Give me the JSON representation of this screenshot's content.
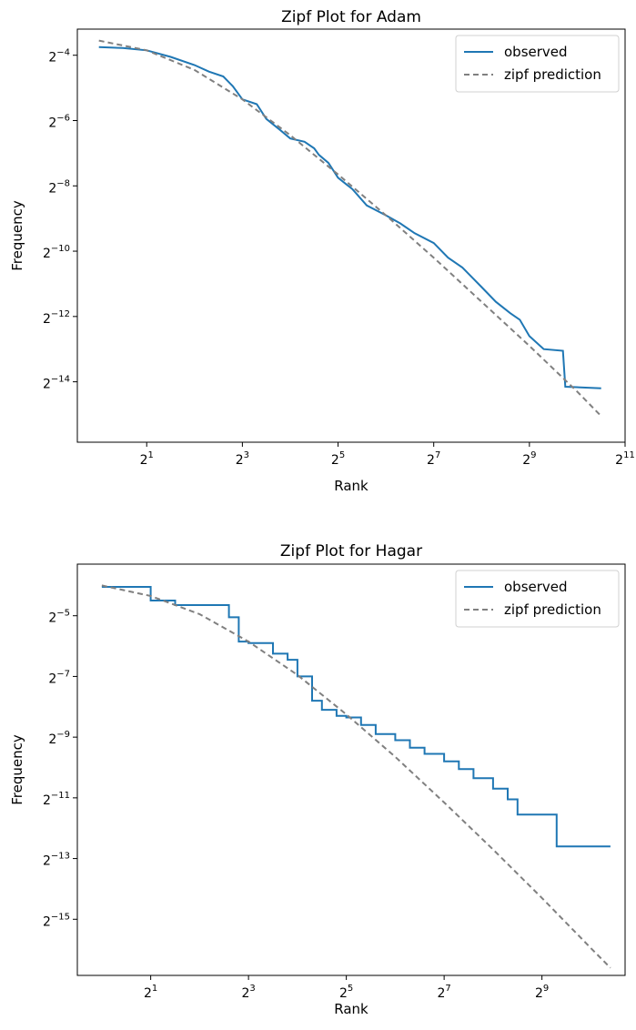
{
  "chart_data": [
    {
      "type": "line",
      "title": "Zipf Plot for Adam",
      "xlabel": "Rank",
      "ylabel": "Frequency",
      "xscale": "log2",
      "yscale": "log2",
      "xlim_log2": [
        -0.45,
        11.0
      ],
      "ylim_log2": [
        -15.85,
        -3.2
      ],
      "xticks": [
        {
          "exp": 1,
          "base": "2",
          "sup": "1"
        },
        {
          "exp": 3,
          "base": "2",
          "sup": "3"
        },
        {
          "exp": 5,
          "base": "2",
          "sup": "5"
        },
        {
          "exp": 7,
          "base": "2",
          "sup": "7"
        },
        {
          "exp": 9,
          "base": "2",
          "sup": "9"
        },
        {
          "exp": 11,
          "base": "2",
          "sup": "11"
        }
      ],
      "yticks": [
        {
          "exp": -4,
          "base": "2",
          "sup": "−4"
        },
        {
          "exp": -6,
          "base": "2",
          "sup": "−6"
        },
        {
          "exp": -8,
          "base": "2",
          "sup": "−8"
        },
        {
          "exp": -10,
          "base": "2",
          "sup": "−10"
        },
        {
          "exp": -12,
          "base": "2",
          "sup": "−12"
        },
        {
          "exp": -14,
          "base": "2",
          "sup": "−14"
        }
      ],
      "legend": {
        "position": "top-right",
        "entries": [
          "observed",
          "zipf prediction"
        ]
      },
      "grid": false,
      "series": [
        {
          "name": "observed",
          "style": "solid",
          "color": "#1f77b4",
          "log2_x": [
            0,
            0.5,
            1.0,
            1.5,
            2.0,
            2.3,
            2.6,
            2.8,
            3.0,
            3.3,
            3.5,
            3.8,
            4.0,
            4.3,
            4.5,
            4.6,
            4.8,
            5.0,
            5.3,
            5.6,
            6.0,
            6.3,
            6.6,
            7.0,
            7.3,
            7.6,
            7.8,
            8.0,
            8.3,
            8.6,
            8.8,
            9.0,
            9.3,
            9.7,
            9.75,
            10.5
          ],
          "log2_y": [
            -3.75,
            -3.78,
            -3.85,
            -4.05,
            -4.3,
            -4.5,
            -4.65,
            -4.95,
            -5.35,
            -5.5,
            -5.95,
            -6.3,
            -6.55,
            -6.65,
            -6.85,
            -7.05,
            -7.3,
            -7.75,
            -8.1,
            -8.6,
            -8.9,
            -9.15,
            -9.45,
            -9.75,
            -10.2,
            -10.5,
            -10.8,
            -11.1,
            -11.55,
            -11.9,
            -12.1,
            -12.6,
            -13.0,
            -13.05,
            -14.15,
            -14.2
          ]
        },
        {
          "name": "zipf prediction",
          "style": "dashed",
          "color": "#808080",
          "log2_x": [
            0,
            1,
            2,
            3,
            4,
            5,
            6,
            7,
            8,
            9,
            10,
            10.5
          ],
          "log2_y": [
            -3.55,
            -3.85,
            -4.45,
            -5.35,
            -6.45,
            -7.65,
            -8.9,
            -10.2,
            -11.55,
            -12.9,
            -14.3,
            -15.05
          ]
        }
      ]
    },
    {
      "type": "line",
      "title": "Zipf Plot for Hagar",
      "xlabel": "Rank",
      "ylabel": "Frequency",
      "xscale": "log2",
      "yscale": "log2",
      "xlim_log2": [
        -0.5,
        10.7
      ],
      "ylim_log2": [
        -16.85,
        -3.3
      ],
      "xticks": [
        {
          "exp": 1,
          "base": "2",
          "sup": "1"
        },
        {
          "exp": 3,
          "base": "2",
          "sup": "3"
        },
        {
          "exp": 5,
          "base": "2",
          "sup": "5"
        },
        {
          "exp": 7,
          "base": "2",
          "sup": "7"
        },
        {
          "exp": 9,
          "base": "2",
          "sup": "9"
        }
      ],
      "yticks": [
        {
          "exp": -5,
          "base": "2",
          "sup": "−5"
        },
        {
          "exp": -7,
          "base": "2",
          "sup": "−7"
        },
        {
          "exp": -9,
          "base": "2",
          "sup": "−9"
        },
        {
          "exp": -11,
          "base": "2",
          "sup": "−11"
        },
        {
          "exp": -13,
          "base": "2",
          "sup": "−13"
        },
        {
          "exp": -15,
          "base": "2",
          "sup": "−15"
        }
      ],
      "legend": {
        "position": "top-right",
        "entries": [
          "observed",
          "zipf prediction"
        ]
      },
      "grid": false,
      "series": [
        {
          "name": "observed",
          "style": "solid",
          "color": "#1f77b4",
          "log2_x": [
            0,
            1.0,
            1.5,
            2.0,
            2.6,
            2.8,
            3.0,
            3.5,
            3.8,
            4.0,
            4.3,
            4.5,
            4.8,
            5.0,
            5.3,
            5.6,
            6.0,
            6.3,
            6.6,
            7.0,
            7.3,
            7.6,
            8.0,
            8.3,
            8.5,
            9.3,
            10.4
          ],
          "log2_y": [
            -4.05,
            -4.5,
            -4.65,
            -4.65,
            -5.05,
            -5.85,
            -5.9,
            -6.25,
            -6.45,
            -7.0,
            -7.8,
            -8.1,
            -8.3,
            -8.35,
            -8.6,
            -8.9,
            -9.1,
            -9.35,
            -9.55,
            -9.8,
            -10.05,
            -10.35,
            -10.7,
            -11.05,
            -11.55,
            -12.6,
            -12.6
          ],
          "step": true
        },
        {
          "name": "zipf prediction",
          "style": "dashed",
          "color": "#808080",
          "log2_x": [
            0,
            1,
            2,
            3,
            4,
            5,
            6,
            7,
            8,
            9,
            10,
            10.4
          ],
          "log2_y": [
            -4.0,
            -4.35,
            -4.95,
            -5.85,
            -6.95,
            -8.25,
            -9.65,
            -11.15,
            -12.7,
            -14.3,
            -15.95,
            -16.6
          ]
        }
      ]
    }
  ]
}
